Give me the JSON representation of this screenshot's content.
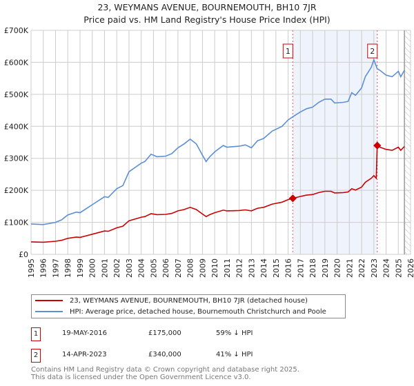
{
  "title": "23, WEYMANS AVENUE, BOURNEMOUTH, BH10 7JR",
  "subtitle": "Price paid vs. HM Land Registry's House Price Index (HPI)",
  "chart_data": {
    "type": "line",
    "xlim": [
      1995,
      2026
    ],
    "ylim": [
      0,
      700000
    ],
    "x_ticks": [
      "1995",
      "1996",
      "1997",
      "1998",
      "1999",
      "2000",
      "2001",
      "2002",
      "2003",
      "2004",
      "2005",
      "2006",
      "2007",
      "2008",
      "2009",
      "2010",
      "2011",
      "2012",
      "2013",
      "2014",
      "2015",
      "2016",
      "2017",
      "2018",
      "2019",
      "2020",
      "2021",
      "2022",
      "2023",
      "2024",
      "2025",
      "2026"
    ],
    "y_ticks": [
      {
        "v": 0,
        "label": "£0"
      },
      {
        "v": 100000,
        "label": "£100K"
      },
      {
        "v": 200000,
        "label": "£200K"
      },
      {
        "v": 300000,
        "label": "£300K"
      },
      {
        "v": 400000,
        "label": "£400K"
      },
      {
        "v": 500000,
        "label": "£500K"
      },
      {
        "v": 600000,
        "label": "£600K"
      },
      {
        "v": 700000,
        "label": "£700K"
      }
    ],
    "grid": true,
    "shaded_range": [
      2016.38,
      2023.28
    ],
    "future_hatch_from": 2025.5,
    "series": [
      {
        "name": "23, WEYMANS AVENUE, BOURNEMOUTH, BH10 7JR (detached house)",
        "color": "#cc0000",
        "x": [
          1995,
          1996,
          1997,
          1997.5,
          1998,
          1998.7,
          1999,
          2000,
          2001,
          2001.3,
          2002,
          2002.5,
          2003,
          2004,
          2004.3,
          2004.8,
          2005.3,
          2006,
          2006.5,
          2007,
          2007.5,
          2008,
          2008.5,
          2009,
          2009.3,
          2009.6,
          2010,
          2010.7,
          2011,
          2012,
          2012.5,
          2013,
          2013.5,
          2014,
          2014.7,
          2015.5,
          2016,
          2016.38,
          2017,
          2017.5,
          2018,
          2018.5,
          2019,
          2019.5,
          2019.8,
          2020.5,
          2020.9,
          2021.2,
          2021.5,
          2022,
          2022.3,
          2022.8,
          2023,
          2023.2,
          2023.28,
          2023.5,
          2024,
          2024.5,
          2025,
          2025.2,
          2025.5
        ],
        "y": [
          39000,
          38000,
          41000,
          44000,
          50000,
          54000,
          53000,
          63000,
          73000,
          72000,
          83000,
          88000,
          105000,
          116000,
          118000,
          127000,
          124000,
          125000,
          128000,
          136000,
          140000,
          147000,
          140000,
          126000,
          118000,
          124000,
          130000,
          138000,
          136000,
          137000,
          139000,
          136000,
          144000,
          147000,
          157000,
          163000,
          171000,
          175000,
          181000,
          185000,
          187000,
          193000,
          197000,
          197000,
          192000,
          193000,
          195000,
          205000,
          201000,
          210000,
          225000,
          238000,
          246000,
          238000,
          340000,
          335000,
          328000,
          325000,
          335000,
          325000,
          337000
        ]
      },
      {
        "name": "HPI: Average price, detached house, Bournemouth Christchurch and Poole",
        "color": "#5b8fd4",
        "x": [
          1995,
          1996,
          1997,
          1997.5,
          1998,
          1998.7,
          1999,
          2000,
          2001,
          2001.3,
          2002,
          2002.5,
          2003,
          2004,
          2004.3,
          2004.8,
          2005.3,
          2006,
          2006.5,
          2007,
          2007.5,
          2008,
          2008.5,
          2009,
          2009.3,
          2009.6,
          2010,
          2010.7,
          2011,
          2012,
          2012.5,
          2013,
          2013.5,
          2014,
          2014.7,
          2015.5,
          2016,
          2016.38,
          2017,
          2017.5,
          2018,
          2018.5,
          2019,
          2019.5,
          2019.8,
          2020.5,
          2020.9,
          2021.2,
          2021.5,
          2022,
          2022.3,
          2022.8,
          2023,
          2023.28,
          2023.5,
          2024,
          2024.5,
          2025,
          2025.2,
          2025.5
        ],
        "y": [
          95000,
          93000,
          100000,
          108000,
          123000,
          132000,
          130000,
          155000,
          180000,
          178000,
          205000,
          215000,
          258000,
          285000,
          290000,
          313000,
          305000,
          307000,
          315000,
          333000,
          345000,
          360000,
          345000,
          310000,
          290000,
          305000,
          320000,
          340000,
          335000,
          338000,
          342000,
          333000,
          355000,
          362000,
          385000,
          400000,
          420000,
          430000,
          445000,
          455000,
          460000,
          475000,
          485000,
          485000,
          473000,
          475000,
          478000,
          505000,
          497000,
          520000,
          555000,
          585000,
          608000,
          580000,
          575000,
          560000,
          555000,
          572000,
          555000,
          575000
        ]
      }
    ],
    "annotations": [
      {
        "label": "1",
        "x": 2016.38,
        "y": 175000
      },
      {
        "label": "2",
        "x": 2023.28,
        "y": 340000
      }
    ]
  },
  "legend": {
    "red": "23, WEYMANS AVENUE, BOURNEMOUTH, BH10 7JR (detached house)",
    "blue": "HPI: Average price, detached house, Bournemouth Christchurch and Poole"
  },
  "sales": [
    {
      "num": "1",
      "date": "19-MAY-2016",
      "price": "£175,000",
      "hpi": "59% ↓ HPI"
    },
    {
      "num": "2",
      "date": "14-APR-2023",
      "price": "£340,000",
      "hpi": "41% ↓ HPI"
    }
  ],
  "footer": {
    "line1": "Contains HM Land Registry data © Crown copyright and database right 2025.",
    "line2": "This data is licensed under the Open Government Licence v3.0."
  }
}
